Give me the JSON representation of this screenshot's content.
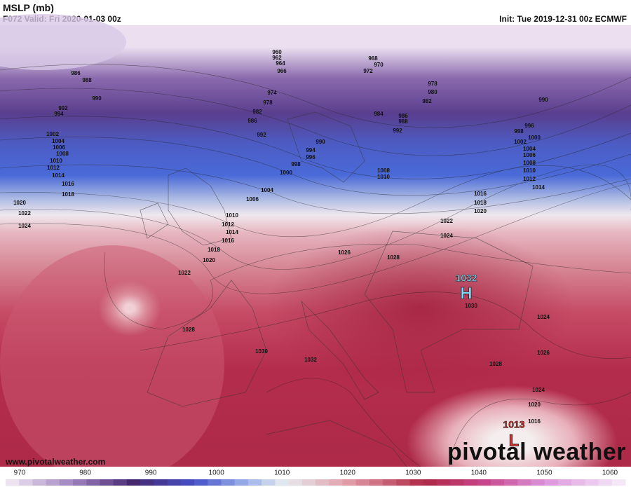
{
  "header": {
    "title": "MSLP (mb)",
    "valid": "F072 Valid: Fri 2020-01-03 00z",
    "init": "Init: Tue 2019-12-31 00z ECMWF"
  },
  "contour_labels": [
    960,
    962,
    964,
    966,
    986,
    988,
    990,
    992,
    994,
    974,
    978,
    982,
    986,
    992,
    990,
    994,
    996,
    998,
    1000,
    1002,
    1004,
    1006,
    1008,
    1010,
    1012,
    1014,
    1016,
    1018,
    1020,
    1022,
    1024,
    1004,
    1006,
    1010,
    1012,
    1014,
    1016,
    1018,
    1020,
    1022,
    968,
    970,
    972,
    978,
    980,
    982,
    984,
    986,
    988,
    992,
    990,
    996,
    998,
    1000,
    1002,
    1004,
    1006,
    1008,
    1010,
    1012,
    1014,
    1008,
    1010,
    1016,
    1018,
    1020,
    1022,
    1024,
    1026,
    1028,
    1030,
    1024,
    1026,
    1028,
    1024,
    1020,
    1016,
    1028,
    1030,
    1032
  ],
  "centers": [
    {
      "value": 1032,
      "symbol": "H"
    },
    {
      "value": 1013,
      "symbol": "L"
    }
  ],
  "colorbar": {
    "labels": [
      970,
      980,
      990,
      1000,
      1010,
      1020,
      1030,
      1040,
      1050,
      1060
    ]
  },
  "footer": {
    "url": "www.pivotalweather.com",
    "logo": "pivotal weather"
  }
}
